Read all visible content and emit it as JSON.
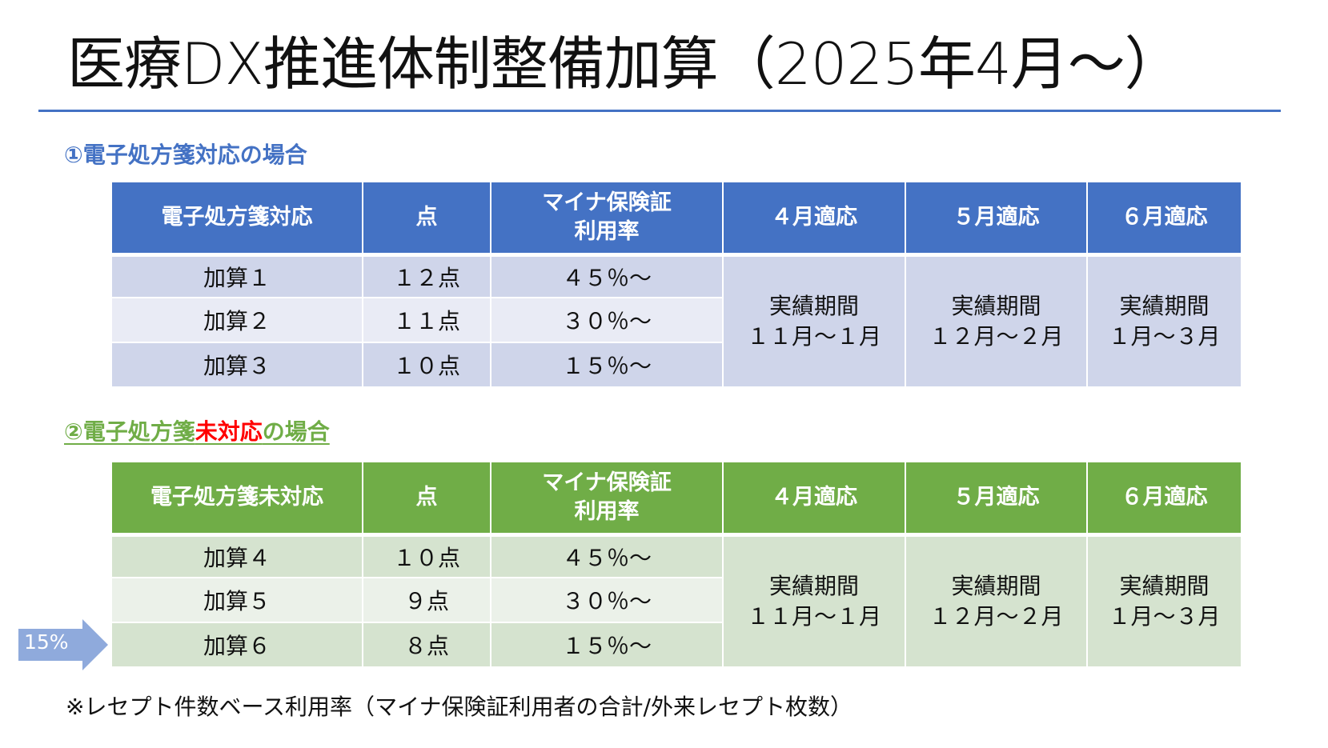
{
  "title": "医療DX推進体制整備加算（2025年4月～）",
  "colors": {
    "accent_blue": "#4472C4",
    "accent_green": "#70AD47",
    "highlight_red": "#FF0000",
    "arrow": "#8FAADC"
  },
  "section1": {
    "heading": "①電子処方箋対応の場合",
    "headers": [
      "電子処方箋対応",
      "点",
      "マイナ保険証",
      "利用率",
      "４月適応",
      "５月適応",
      "６月適応"
    ],
    "rows": [
      {
        "name": "加算１",
        "points": "１２点",
        "rate": "４５％～"
      },
      {
        "name": "加算２",
        "points": "１１点",
        "rate": "３０％～"
      },
      {
        "name": "加算３",
        "points": "１０点",
        "rate": "１５％～"
      }
    ],
    "periods": [
      {
        "label": "実績期間",
        "range": "１１月～１月"
      },
      {
        "label": "実績期間",
        "range": "１２月～２月"
      },
      {
        "label": "実績期間",
        "range": "１月～３月"
      }
    ]
  },
  "section2": {
    "heading_prefix": "②電子処方箋",
    "heading_highlight": "未対応",
    "heading_suffix": "の場合",
    "headers": [
      "電子処方箋未対応",
      "点",
      "マイナ保険証",
      "利用率",
      "４月適応",
      "５月適応",
      "６月適応"
    ],
    "rows": [
      {
        "name": "加算４",
        "points": "１０点",
        "rate": "４５％～"
      },
      {
        "name": "加算５",
        "points": "９点",
        "rate": "３０％～"
      },
      {
        "name": "加算６",
        "points": "８点",
        "rate": "１５％～"
      }
    ],
    "periods": [
      {
        "label": "実績期間",
        "range": "１１月～１月"
      },
      {
        "label": "実績期間",
        "range": "１２月～２月"
      },
      {
        "label": "実績期間",
        "range": "１月～３月"
      }
    ]
  },
  "arrow_label": "15%",
  "footnote": "※レセプト件数ベース利用率（マイナ保険証利用者の合計/外来レセプト枚数）"
}
